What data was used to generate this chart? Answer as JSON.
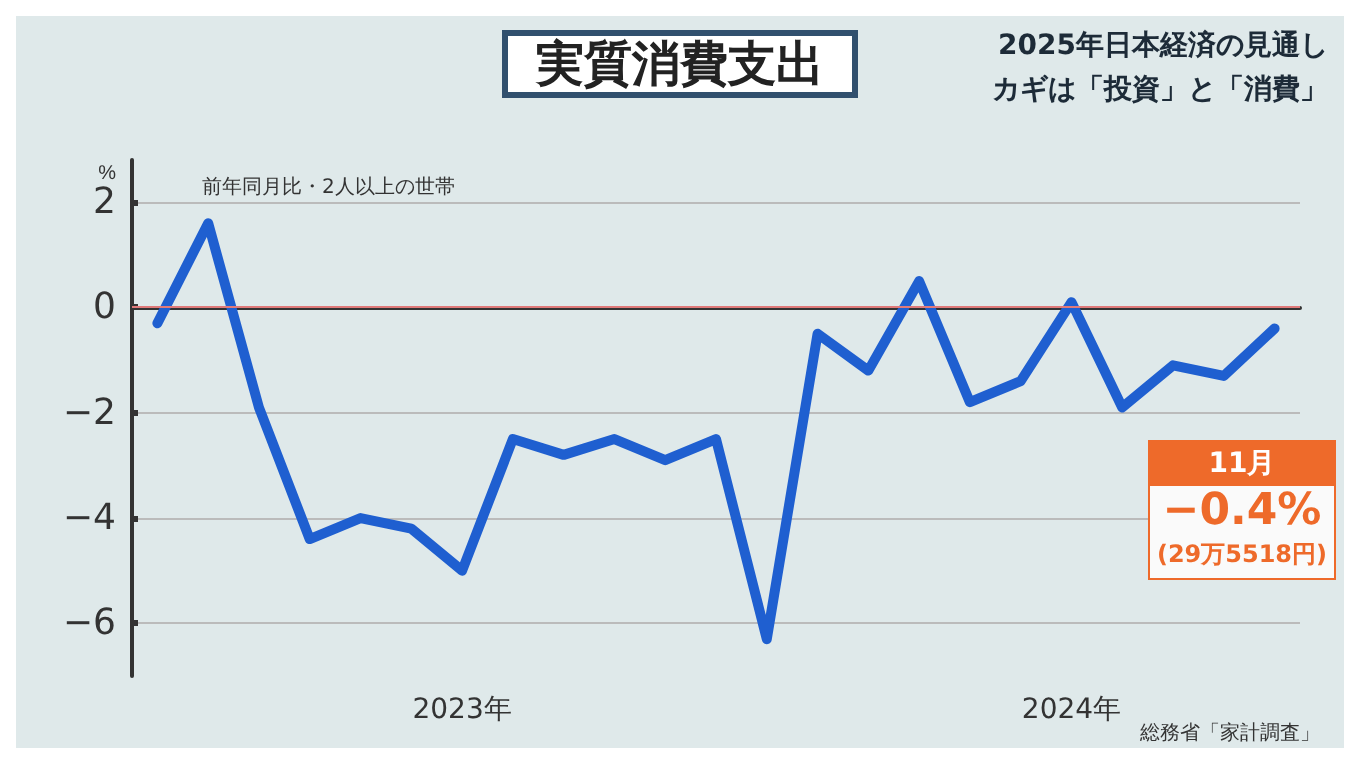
{
  "chart_data": {
    "type": "line",
    "title": "実質消費支出",
    "subtitle": "前年同月比・2人以上の世帯",
    "ylabel": "%",
    "categories": [
      null,
      null,
      null,
      null,
      null,
      null,
      "2023年",
      null,
      null,
      null,
      null,
      null,
      null,
      null,
      null,
      null,
      null,
      null,
      "2024年",
      null,
      null,
      null,
      null
    ],
    "series": [
      {
        "color": "#1f5fd0",
        "values": [
          -0.3,
          1.6,
          -1.9,
          -4.4,
          -4.0,
          -4.2,
          -5.0,
          -2.5,
          -2.8,
          -2.5,
          -2.9,
          -2.5,
          -6.3,
          -0.5,
          -1.2,
          0.5,
          -1.8,
          -1.4,
          0.1,
          -1.9,
          -1.1,
          -1.3,
          -0.4
        ]
      }
    ],
    "ylim": [
      -7,
      2.8
    ],
    "yticks": [
      -6,
      -4,
      -2,
      0,
      2
    ],
    "grid": "y",
    "marker": "none",
    "line_style": "solid",
    "ref_lines": [
      {
        "axis": "y",
        "value": 0,
        "color": "#e07a7a"
      }
    ],
    "annotations": [
      "2025年日本経済の見通し",
      "カギは「投資」と「消費」",
      "総務省「家計調査」",
      "11月",
      "−0.4%",
      "(29万5518円)"
    ]
  }
}
